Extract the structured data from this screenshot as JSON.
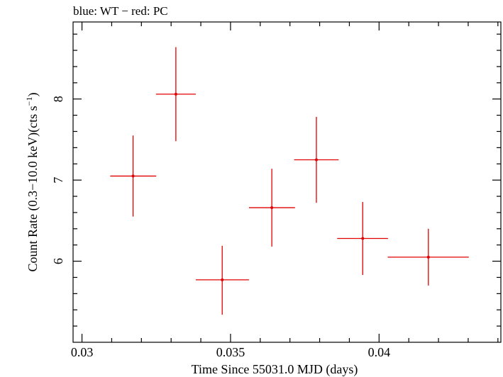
{
  "chart_data": {
    "type": "scatter",
    "title": "blue: WT − red: PC",
    "xlabel": "Time Since 55031.0 MJD (days)",
    "ylabel": "Count Rate (0.3−10.0 keV)(cts s",
    "ylabel_sup": "−1",
    "ylabel_close": ")",
    "xlim": [
      0.0297,
      0.0441
    ],
    "ylim": [
      5.0,
      8.95
    ],
    "x_ticks_major": [
      0.03,
      0.035,
      0.04
    ],
    "x_tick_labels": [
      "0.03",
      "0.035",
      "0.04"
    ],
    "x_ticks_minor": [
      0.031,
      0.032,
      0.033,
      0.034,
      0.036,
      0.037,
      0.038,
      0.039,
      0.041,
      0.042,
      0.043,
      0.044
    ],
    "y_ticks_major": [
      6,
      7,
      8
    ],
    "y_tick_labels": [
      "6",
      "7",
      "8"
    ],
    "y_ticks_minor": [
      5.2,
      5.4,
      5.6,
      5.8,
      6.2,
      6.4,
      6.6,
      6.8,
      7.2,
      7.4,
      7.6,
      7.8,
      8.2,
      8.4,
      8.6,
      8.8
    ],
    "series": [
      {
        "color": "#e00000",
        "points": [
          {
            "x": 0.03172,
            "y": 7.05,
            "xerr_lo": 0.00077,
            "xerr_hi": 0.00078,
            "yerr_lo": 0.5,
            "yerr_hi": 0.5
          },
          {
            "x": 0.03316,
            "y": 8.06,
            "xerr_lo": 0.00067,
            "xerr_hi": 0.00067,
            "yerr_lo": 0.58,
            "yerr_hi": 0.58
          },
          {
            "x": 0.03472,
            "y": 5.77,
            "xerr_lo": 0.00089,
            "xerr_hi": 0.0009,
            "yerr_lo": 0.43,
            "yerr_hi": 0.42
          },
          {
            "x": 0.03639,
            "y": 6.66,
            "xerr_lo": 0.00077,
            "xerr_hi": 0.00078,
            "yerr_lo": 0.48,
            "yerr_hi": 0.48
          },
          {
            "x": 0.03789,
            "y": 7.25,
            "xerr_lo": 0.00075,
            "xerr_hi": 0.00075,
            "yerr_lo": 0.53,
            "yerr_hi": 0.53
          },
          {
            "x": 0.03945,
            "y": 6.28,
            "xerr_lo": 0.00086,
            "xerr_hi": 0.00085,
            "yerr_lo": 0.45,
            "yerr_hi": 0.45
          },
          {
            "x": 0.04166,
            "y": 6.05,
            "xerr_lo": 0.00137,
            "xerr_hi": 0.00136,
            "yerr_lo": 0.35,
            "yerr_hi": 0.35
          }
        ]
      }
    ]
  }
}
